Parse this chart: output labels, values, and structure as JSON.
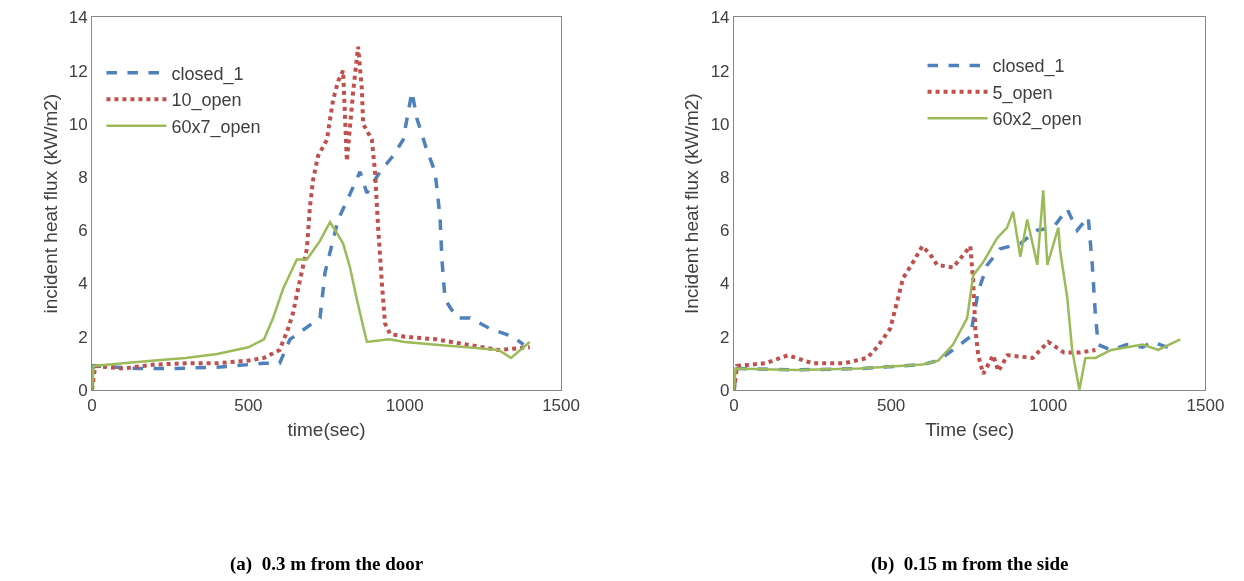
{
  "chart_data": [
    {
      "type": "line",
      "xlabel": "time(sec)",
      "ylabel": "incident heat flux (kW/m2)",
      "xlim": [
        0,
        1500
      ],
      "xticks": [
        0,
        500,
        1000,
        1500
      ],
      "ylim": [
        0,
        14
      ],
      "yticks": [
        0,
        2,
        4,
        6,
        8,
        10,
        12,
        14
      ],
      "legend": "top left",
      "marker": "none",
      "annotations": [
        "(a)  0.3 m from the door"
      ],
      "series": [
        {
          "name": "closed_1",
          "color": "#4f81bd",
          "line_style": "dashed",
          "x": [
            0,
            5,
            150,
            250,
            400,
            550,
            600,
            633,
            729,
            745,
            787,
            815,
            857,
            879,
            921,
            963,
            995,
            1023,
            1039,
            1071,
            1097,
            1113,
            1119,
            1129,
            1167,
            1209,
            1273,
            1346,
            1380
          ],
          "values": [
            0,
            0.9,
            0.8,
            0.8,
            0.85,
            1.0,
            1.0,
            1.9,
            2.7,
            4.4,
            6.4,
            7.1,
            8.2,
            7.4,
            8.2,
            8.8,
            9.4,
            11.2,
            10.2,
            9.0,
            8.2,
            6.5,
            4.9,
            3.4,
            2.7,
            2.7,
            2.3,
            2.0,
            1.7
          ]
        },
        {
          "name": "10_open",
          "color": "#c0504d",
          "line_style": "dotted",
          "x": [
            0,
            10,
            100,
            200,
            300,
            400,
            500,
            550,
            600,
            627,
            643,
            659,
            687,
            697,
            707,
            723,
            751,
            771,
            787,
            803,
            815,
            835,
            851,
            863,
            867,
            895,
            905,
            915,
            927,
            937,
            953,
            1000,
            1100,
            1200,
            1300,
            1400
          ],
          "values": [
            0,
            0.9,
            0.8,
            0.95,
            1.0,
            1.0,
            1.1,
            1.2,
            1.5,
            2.3,
            2.9,
            3.8,
            5.3,
            6.9,
            7.9,
            8.8,
            9.4,
            10.9,
            11.6,
            12.0,
            8.6,
            11.2,
            12.9,
            11.3,
            10.0,
            9.4,
            8.2,
            6.1,
            4.0,
            2.5,
            2.1,
            2.0,
            1.9,
            1.7,
            1.5,
            1.6
          ]
        },
        {
          "name": "60x7_open",
          "color": "#9bbb59",
          "line_style": "solid",
          "x": [
            0,
            5,
            100,
            200,
            300,
            400,
            500,
            550,
            579,
            611,
            655,
            687,
            729,
            761,
            783,
            803,
            825,
            847,
            879,
            950,
            1000,
            1100,
            1200,
            1300,
            1340,
            1400
          ],
          "values": [
            0,
            0.9,
            1.0,
            1.1,
            1.2,
            1.35,
            1.6,
            1.9,
            2.7,
            3.8,
            4.9,
            4.9,
            5.6,
            6.3,
            5.9,
            5.5,
            4.6,
            3.4,
            1.8,
            1.9,
            1.8,
            1.7,
            1.6,
            1.5,
            1.2,
            1.8
          ]
        }
      ]
    },
    {
      "type": "line",
      "xlabel": "Time (sec)",
      "ylabel": "Incident heat flux (kW/m2)",
      "xlim": [
        0,
        1500
      ],
      "xticks": [
        0,
        500,
        1000,
        1500
      ],
      "ylim": [
        0,
        14
      ],
      "yticks": [
        0,
        2,
        4,
        6,
        8,
        10,
        12,
        14
      ],
      "legend": "top",
      "marker": "none",
      "annotations": [
        "(b)  0.15 m from the side"
      ],
      "series": [
        {
          "name": "closed_1",
          "color": "#4f81bd",
          "line_style": "dashed",
          "x": [
            0,
            10,
            200,
            400,
            600,
            650,
            720,
            752,
            777,
            806,
            847,
            911,
            965,
            1016,
            1060,
            1092,
            1127,
            1140,
            1150,
            1159,
            1200,
            1250,
            1300,
            1330,
            1380
          ],
          "values": [
            0,
            0.8,
            0.75,
            0.8,
            0.95,
            1.1,
            1.7,
            2.0,
            3.7,
            4.7,
            5.3,
            5.5,
            6.0,
            6.1,
            6.8,
            6.0,
            6.5,
            4.7,
            2.8,
            1.7,
            1.5,
            1.7,
            1.6,
            1.8,
            1.6
          ]
        },
        {
          "name": "5_open",
          "color": "#c0504d",
          "line_style": "dotted",
          "x": [
            0,
            10,
            100,
            172,
            250,
            350,
            424,
            455,
            497,
            519,
            538,
            570,
            599,
            624,
            646,
            697,
            752,
            761,
            768,
            777,
            793,
            825,
            841,
            870,
            950,
            1000,
            1050,
            1100,
            1150
          ],
          "values": [
            0,
            0.9,
            1.0,
            1.3,
            1.0,
            1.0,
            1.2,
            1.6,
            2.3,
            3.3,
            4.2,
            4.8,
            5.4,
            5.1,
            4.7,
            4.6,
            5.4,
            4.1,
            2.3,
            1.3,
            0.6,
            1.3,
            0.7,
            1.3,
            1.2,
            1.8,
            1.4,
            1.4,
            1.5
          ]
        },
        {
          "name": "60x2_open",
          "color": "#9bbb59",
          "line_style": "solid",
          "x": [
            0,
            5,
            200,
            400,
            600,
            650,
            697,
            742,
            761,
            793,
            837,
            869,
            888,
            911,
            933,
            965,
            984,
            997,
            1032,
            1038,
            1060,
            1076,
            1099,
            1118,
            1150,
            1200,
            1250,
            1300,
            1350,
            1420
          ],
          "values": [
            0,
            0.8,
            0.75,
            0.8,
            0.95,
            1.1,
            1.7,
            2.7,
            4.3,
            4.8,
            5.7,
            6.1,
            6.7,
            5.0,
            6.4,
            4.7,
            7.5,
            4.7,
            6.1,
            5.2,
            3.5,
            1.5,
            0.0,
            1.2,
            1.2,
            1.5,
            1.6,
            1.7,
            1.5,
            1.9
          ]
        }
      ]
    }
  ]
}
